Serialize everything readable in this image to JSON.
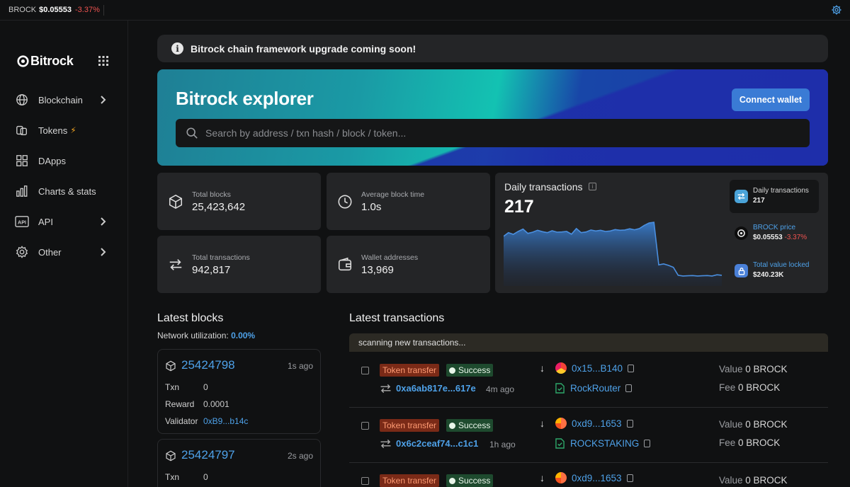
{
  "topbar": {
    "ticker": "BROCK",
    "price": "$0.05553",
    "change": "-3.37%"
  },
  "sidebar": {
    "logo": "Bitrock",
    "items": [
      {
        "label": "Blockchain",
        "icon": "globe-icon",
        "has_chevron": true
      },
      {
        "label": "Tokens",
        "icon": "tokens-icon",
        "has_bolt": true
      },
      {
        "label": "DApps",
        "icon": "apps-grid-icon"
      },
      {
        "label": "Charts & stats",
        "icon": "bar-chart-icon"
      },
      {
        "label": "API",
        "icon": "api-icon",
        "has_chevron": true
      },
      {
        "label": "Other",
        "icon": "gear-icon",
        "has_chevron": true
      }
    ]
  },
  "banner": {
    "text": "Bitrock chain framework upgrade coming soon!"
  },
  "hero": {
    "title": "Bitrock explorer",
    "connect_label": "Connect wallet",
    "search_placeholder": "Search by address / txn hash / block / token..."
  },
  "stats": [
    {
      "label": "Total blocks",
      "value": "25,423,642",
      "icon": "cube-icon"
    },
    {
      "label": "Average block time",
      "value": "1.0s",
      "icon": "clock-icon"
    },
    {
      "label": "Total transactions",
      "value": "942,817",
      "icon": "transfer-icon"
    },
    {
      "label": "Wallet addresses",
      "value": "13,969",
      "icon": "wallet-icon"
    }
  ],
  "daily": {
    "title": "Daily transactions",
    "value": "217",
    "cards": [
      {
        "label": "Daily transactions",
        "value": "217",
        "icon": "transfer-icon",
        "color": "#4aa3d8"
      },
      {
        "label": "BROCK price",
        "value": "$0.05553",
        "change": "-3.37%",
        "icon": "bitrock-coin-icon",
        "color": "#e6e6e6"
      },
      {
        "label": "Total value locked",
        "value": "$240.23K",
        "icon": "lock-icon",
        "color": "#4a80d8"
      }
    ]
  },
  "chart_data": {
    "type": "area",
    "title": "Daily transactions",
    "series": [
      {
        "values": [
          1700,
          1850,
          1780,
          1900,
          2000,
          1820,
          1870,
          1950,
          1890,
          1850,
          1930,
          1870,
          1880,
          1900,
          1790,
          2020,
          1850,
          1880,
          1960,
          1920,
          1950,
          1900,
          1920,
          1980,
          1950,
          1960,
          2010,
          1970,
          2020,
          2150,
          2250,
          2280,
          520,
          560,
          500,
          420,
          90,
          60,
          70,
          80,
          60,
          70,
          80,
          60,
          110,
          90
        ]
      }
    ]
  },
  "latest_blocks": {
    "title": "Latest blocks",
    "util_label": "Network utilization:",
    "util_value": "0.00%",
    "blocks": [
      {
        "number": "25424798",
        "ago": "1s ago",
        "txn": "0",
        "reward": "0.0001",
        "validator": "0xB9...b14c"
      },
      {
        "number": "25424797",
        "ago": "2s ago",
        "txn": "0"
      }
    ],
    "labels": {
      "txn": "Txn",
      "reward": "Reward",
      "validator": "Validator"
    }
  },
  "latest_transactions": {
    "title": "Latest transactions",
    "scanning": "scanning new transactions...",
    "type_label": "Token transfer",
    "status_label": "Success",
    "value_label": "Value",
    "fee_label": "Fee",
    "rows": [
      {
        "hash": "0xa6ab817e...617e",
        "ago": "4m ago",
        "from": "0x15...B140",
        "to": "RockRouter",
        "value": "0 BROCK",
        "fee": "0 BROCK"
      },
      {
        "hash": "0x6c2ceaf74...c1c1",
        "ago": "1h ago",
        "from": "0xd9...1653",
        "to": "ROCKSTAKING",
        "value": "0 BROCK",
        "fee": "0 BROCK"
      },
      {
        "from": "0xd9...1653",
        "value": "0 BROCK"
      }
    ]
  }
}
